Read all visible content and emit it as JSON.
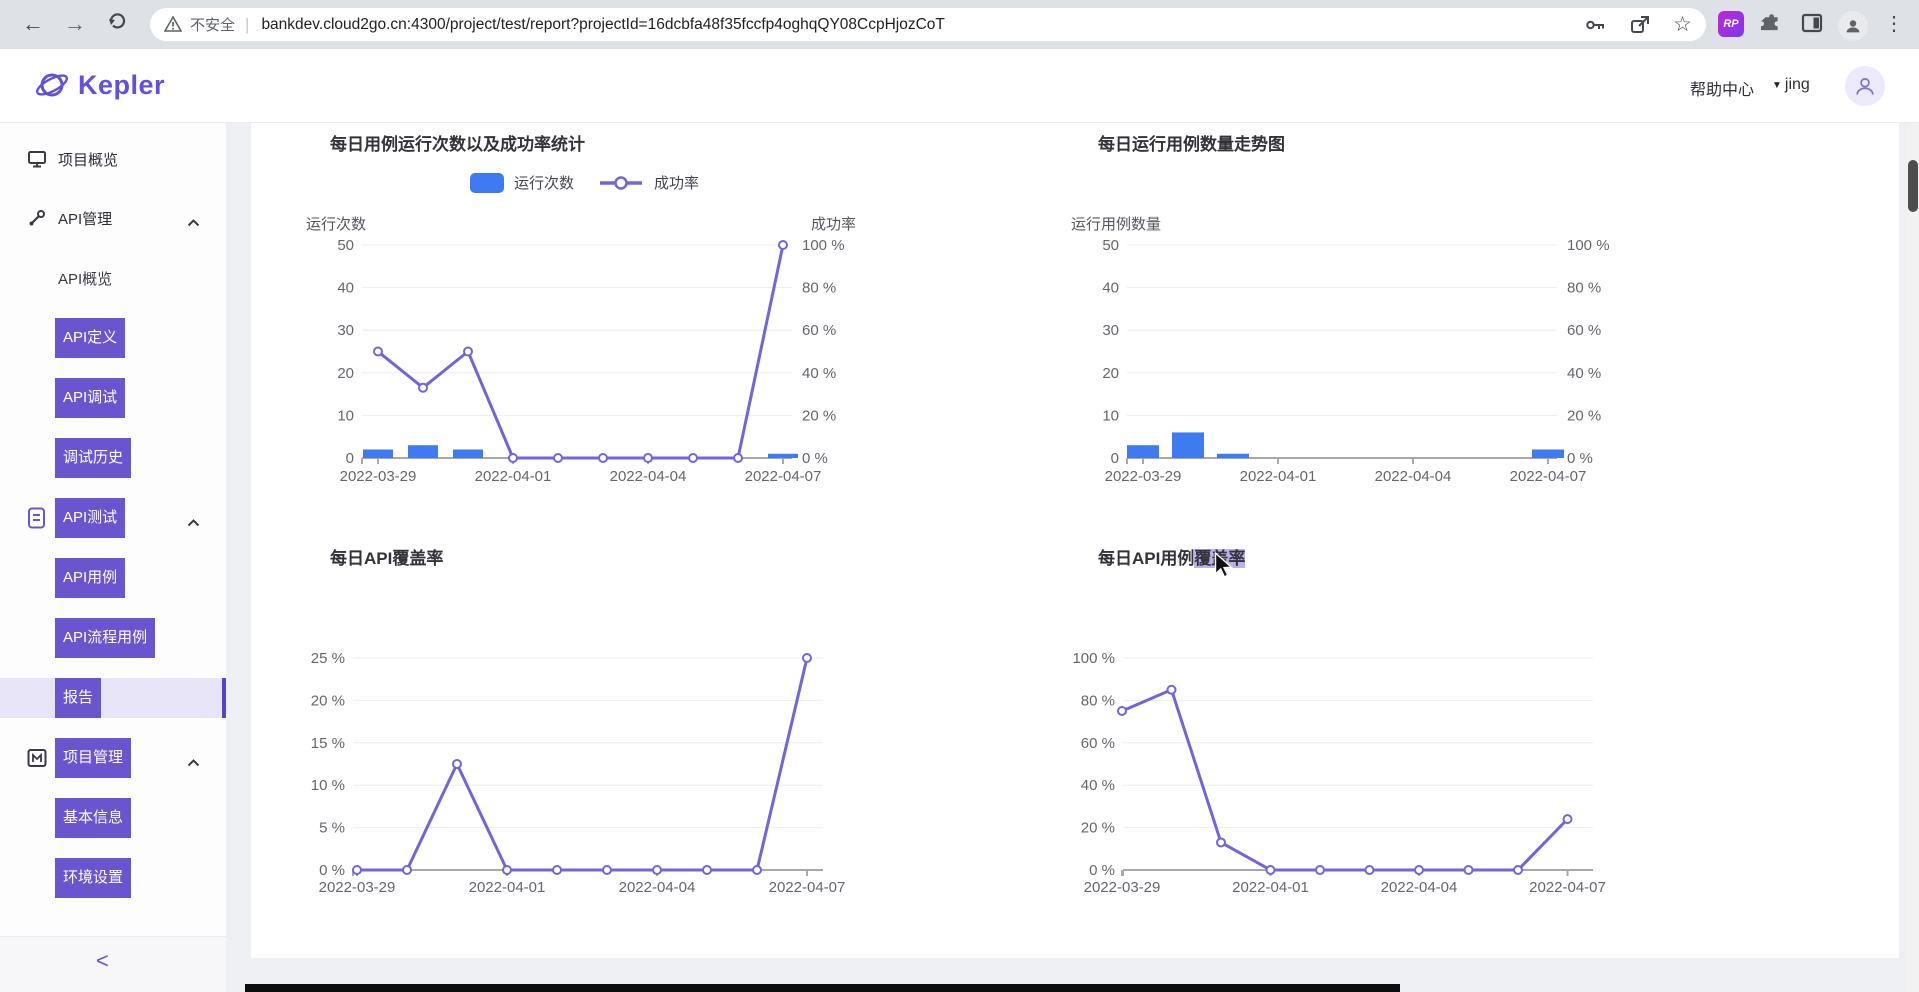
{
  "browser": {
    "security_label": "不安全",
    "url": "bankdev.cloud2go.cn:4300/project/test/report?projectId=16dcbfa48f35fccfp4oghqQY08CcpHjozCoT",
    "extension_badge": "RP"
  },
  "header": {
    "logo_text": "Kepler",
    "help_label": "帮助中心",
    "user_name": "jing"
  },
  "sidebar": {
    "items": [
      {
        "label": "项目概览"
      },
      {
        "label": "API管理"
      },
      {
        "label": "API概览"
      },
      {
        "label": "API定义"
      },
      {
        "label": "API调试"
      },
      {
        "label": "调试历史"
      },
      {
        "label": "API测试"
      },
      {
        "label": "API用例"
      },
      {
        "label": "API流程用例"
      },
      {
        "label": "报告"
      },
      {
        "label": "项目管理"
      },
      {
        "label": "基本信息"
      },
      {
        "label": "环境设置"
      }
    ],
    "collapse": "<"
  },
  "chart_data": [
    {
      "type": "bar",
      "title": "每日用例运行次数以及成功率统计",
      "x": [
        "2022-03-29",
        "2022-03-30",
        "2022-03-31",
        "2022-04-01",
        "2022-04-02",
        "2022-04-03",
        "2022-04-04",
        "2022-04-05",
        "2022-04-06",
        "2022-04-07"
      ],
      "x_shown": [
        "2022-03-29",
        "2022-04-01",
        "2022-04-04",
        "2022-04-07"
      ],
      "x_shown_idx": [
        0,
        3,
        6,
        9
      ],
      "left_axis": {
        "label": "运行次数",
        "max": 50,
        "ticks": [
          "50",
          "40",
          "30",
          "20",
          "10",
          "0"
        ]
      },
      "right_axis": {
        "label": "成功率",
        "max": 100,
        "ticks": [
          "100 %",
          "80 %",
          "60 %",
          "40 %",
          "20 %",
          "0 %"
        ]
      },
      "grid": true,
      "legend_position": "top",
      "series": [
        {
          "name": "运行次数",
          "kind": "bar",
          "axis": "left",
          "color": "#3e7bf2",
          "values": [
            2,
            3,
            2,
            0,
            0,
            0,
            0,
            0,
            0,
            1
          ]
        },
        {
          "name": "成功率",
          "kind": "line",
          "axis": "right",
          "color": "#7264db",
          "values": [
            50,
            33,
            50,
            0,
            0,
            0,
            0,
            0,
            0,
            100
          ]
        }
      ]
    },
    {
      "type": "bar",
      "title": "每日运行用例数量走势图",
      "x": [
        "2022-03-29",
        "2022-03-30",
        "2022-03-31",
        "2022-04-01",
        "2022-04-02",
        "2022-04-03",
        "2022-04-04",
        "2022-04-05",
        "2022-04-06",
        "2022-04-07"
      ],
      "x_shown": [
        "2022-03-29",
        "2022-04-01",
        "2022-04-04",
        "2022-04-07"
      ],
      "x_shown_idx": [
        0,
        3,
        6,
        9
      ],
      "left_axis": {
        "label": "运行用例数量",
        "max": 50,
        "ticks": [
          "50",
          "40",
          "30",
          "20",
          "10",
          "0"
        ]
      },
      "right_axis": {
        "label": "",
        "max": 100,
        "ticks": [
          "100 %",
          "80 %",
          "60 %",
          "40 %",
          "20 %",
          "0 %"
        ]
      },
      "grid": true,
      "series": [
        {
          "name": "运行用例数量",
          "kind": "bar",
          "axis": "left",
          "color": "#3e7bf2",
          "values": [
            3,
            6,
            1,
            0,
            0,
            0,
            0,
            0,
            0,
            2
          ]
        }
      ]
    },
    {
      "type": "line",
      "title": "每日API覆盖率",
      "x": [
        "2022-03-29",
        "2022-03-30",
        "2022-03-31",
        "2022-04-01",
        "2022-04-02",
        "2022-04-03",
        "2022-04-04",
        "2022-04-05",
        "2022-04-06",
        "2022-04-07"
      ],
      "x_shown": [
        "2022-03-29",
        "2022-04-01",
        "2022-04-04",
        "2022-04-07"
      ],
      "x_shown_idx": [
        0,
        3,
        6,
        9
      ],
      "left_axis": {
        "label": "",
        "max": 25,
        "ticks": [
          "25 %",
          "20 %",
          "15 %",
          "10 %",
          "5 %",
          "0 %"
        ]
      },
      "grid": true,
      "series": [
        {
          "name": "每日API覆盖率",
          "kind": "line",
          "axis": "left",
          "color": "#7264db",
          "values": [
            0,
            0,
            12.5,
            0,
            0,
            0,
            0,
            0,
            0,
            25
          ]
        }
      ]
    },
    {
      "type": "line",
      "title": "每日API用例覆盖率",
      "title_parts": [
        "每日API用例",
        "覆盖率"
      ],
      "x": [
        "2022-03-29",
        "2022-03-30",
        "2022-03-31",
        "2022-04-01",
        "2022-04-02",
        "2022-04-03",
        "2022-04-04",
        "2022-04-05",
        "2022-04-06",
        "2022-04-07"
      ],
      "x_shown": [
        "2022-03-29",
        "2022-04-01",
        "2022-04-04",
        "2022-04-07"
      ],
      "x_shown_idx": [
        0,
        3,
        6,
        9
      ],
      "left_axis": {
        "label": "",
        "max": 100,
        "ticks": [
          "100 %",
          "80 %",
          "60 %",
          "40 %",
          "20 %",
          "0 %"
        ]
      },
      "grid": true,
      "series": [
        {
          "name": "每日API用例覆盖率",
          "kind": "line",
          "axis": "left",
          "color": "#7264db",
          "values": [
            75,
            85,
            13,
            0,
            0,
            0,
            0,
            0,
            0,
            24
          ]
        }
      ]
    }
  ]
}
